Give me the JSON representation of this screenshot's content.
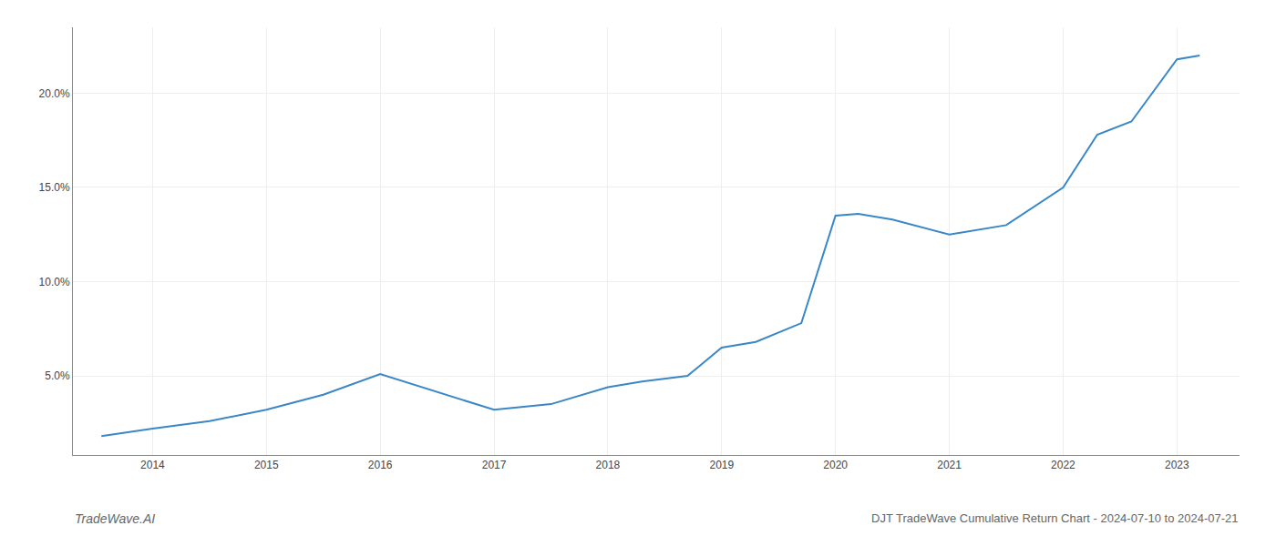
{
  "chart_data": {
    "type": "line",
    "title": "DJT TradeWave Cumulative Return Chart - 2024-07-10 to 2024-07-21",
    "annotations": [
      {
        "text": "TradeWave.AI"
      }
    ],
    "x": [
      2013.55,
      2014.0,
      2014.5,
      2015.0,
      2015.5,
      2016.0,
      2017.0,
      2017.5,
      2018.0,
      2018.3,
      2018.7,
      2019.0,
      2019.3,
      2019.7,
      2020.0,
      2020.2,
      2020.5,
      2021.0,
      2021.5,
      2022.0,
      2022.3,
      2022.6,
      2023.0,
      2023.2
    ],
    "values": [
      1.8,
      2.2,
      2.6,
      3.2,
      4.0,
      5.1,
      3.2,
      3.5,
      4.4,
      4.7,
      5.0,
      6.5,
      6.8,
      7.8,
      13.5,
      13.6,
      13.3,
      12.5,
      13.0,
      15.0,
      17.8,
      18.5,
      21.8,
      22.0
    ],
    "color": "#3a87c8",
    "xlim": [
      2013.3,
      2023.55
    ],
    "xticks": [
      2014,
      2015,
      2016,
      2017,
      2018,
      2019,
      2020,
      2021,
      2022,
      2023
    ],
    "ylim": [
      0.8,
      23.5
    ],
    "yticks": [
      {
        "value": 5.0,
        "label": "5.0%"
      },
      {
        "value": 10.0,
        "label": "10.0%"
      },
      {
        "value": 15.0,
        "label": "15.0%"
      },
      {
        "value": 20.0,
        "label": "20.0%"
      }
    ],
    "grid": true
  }
}
